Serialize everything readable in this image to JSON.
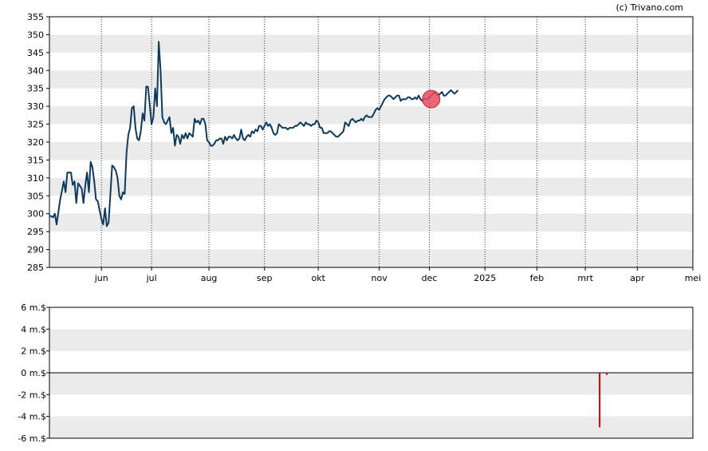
{
  "credit": "(c) Trivano.com",
  "colors": {
    "band": "#ebebeb",
    "price_line": "#0e3a5c",
    "marker": "#e84a5f",
    "volume_bar": "#cc0000"
  },
  "chart_data": [
    {
      "type": "line",
      "title": "",
      "xlabel": "",
      "ylabel": "",
      "ylim": [
        285,
        355
      ],
      "yticks": [
        285,
        290,
        295,
        300,
        305,
        310,
        315,
        320,
        325,
        330,
        335,
        340,
        345,
        350,
        355
      ],
      "grid": "alternating horizontal bands, dotted vertical lines at month ticks",
      "x_domain": [
        0,
        359
      ],
      "xticks": [
        {
          "label": "jun",
          "x": 29
        },
        {
          "label": "jul",
          "x": 57
        },
        {
          "label": "aug",
          "x": 89
        },
        {
          "label": "sep",
          "x": 120
        },
        {
          "label": "okt",
          "x": 150
        },
        {
          "label": "nov",
          "x": 184
        },
        {
          "label": "dec",
          "x": 212
        },
        {
          "label": "2025",
          "x": 243
        },
        {
          "label": "feb",
          "x": 272
        },
        {
          "label": "mrt",
          "x": 299
        },
        {
          "label": "apr",
          "x": 328
        },
        {
          "label": "mei",
          "x": 359
        }
      ],
      "series": [
        {
          "points": [
            [
              0,
              299.5
            ],
            [
              2,
              299
            ],
            [
              3,
              300
            ],
            [
              4,
              297
            ],
            [
              6,
              304
            ],
            [
              8,
              309
            ],
            [
              9,
              306
            ],
            [
              10,
              311.5
            ],
            [
              12,
              311.5
            ],
            [
              13,
              308
            ],
            [
              14,
              309
            ],
            [
              15,
              303
            ],
            [
              16,
              308.5
            ],
            [
              18,
              307
            ],
            [
              19,
              303
            ],
            [
              20,
              308
            ],
            [
              21,
              311.5
            ],
            [
              22,
              306
            ],
            [
              23,
              314.5
            ],
            [
              24,
              313
            ],
            [
              25,
              309
            ],
            [
              26,
              304
            ],
            [
              27,
              303.5
            ],
            [
              28,
              301
            ],
            [
              29,
              298.5
            ],
            [
              30,
              297
            ],
            [
              31,
              301.5
            ],
            [
              32,
              296.5
            ],
            [
              33,
              297.5
            ],
            [
              35,
              313.5
            ],
            [
              36,
              313
            ],
            [
              37,
              312
            ],
            [
              38,
              310
            ],
            [
              39,
              305
            ],
            [
              40,
              304
            ],
            [
              41,
              306
            ],
            [
              42,
              305.5
            ],
            [
              43,
              317
            ],
            [
              44,
              322
            ],
            [
              45,
              324
            ],
            [
              46,
              329.5
            ],
            [
              47,
              330
            ],
            [
              48,
              324
            ],
            [
              49,
              321
            ],
            [
              50,
              320.5
            ],
            [
              51,
              323
            ],
            [
              52,
              328
            ],
            [
              53,
              326
            ],
            [
              54,
              335.5
            ],
            [
              55,
              335.5
            ],
            [
              57,
              325
            ],
            [
              58,
              327
            ],
            [
              59,
              335
            ],
            [
              60,
              330
            ],
            [
              61,
              348
            ],
            [
              62,
              340
            ],
            [
              63,
              327
            ],
            [
              64,
              325.5
            ],
            [
              65,
              325
            ],
            [
              66,
              326
            ],
            [
              67,
              327
            ],
            [
              68,
              322.5
            ],
            [
              69,
              324
            ],
            [
              70,
              319
            ],
            [
              71,
              322
            ],
            [
              72,
              321.5
            ],
            [
              73,
              319.5
            ],
            [
              74,
              322
            ],
            [
              75,
              321
            ],
            [
              76,
              322.5
            ],
            [
              77,
              321
            ],
            [
              78,
              322.5
            ],
            [
              79,
              322
            ],
            [
              80,
              321.5
            ],
            [
              81,
              326.5
            ],
            [
              82,
              325.5
            ],
            [
              83,
              326
            ],
            [
              84,
              325
            ],
            [
              85,
              326.5
            ],
            [
              86,
              326.5
            ],
            [
              87,
              325
            ],
            [
              88,
              320.5
            ],
            [
              89,
              320
            ],
            [
              90,
              319
            ],
            [
              91,
              319
            ],
            [
              92,
              319.5
            ],
            [
              93,
              320.5
            ],
            [
              94,
              320.5
            ],
            [
              95,
              321
            ],
            [
              96,
              321
            ],
            [
              97,
              319.5
            ],
            [
              98,
              321.5
            ],
            [
              99,
              320.5
            ],
            [
              100,
              321.5
            ],
            [
              101,
              321.5
            ],
            [
              102,
              321
            ],
            [
              103,
              322
            ],
            [
              104,
              321
            ],
            [
              105,
              320.5
            ],
            [
              106,
              321
            ],
            [
              107,
              323.5
            ],
            [
              108,
              321
            ],
            [
              109,
              320.5
            ],
            [
              110,
              321.5
            ],
            [
              111,
              322
            ],
            [
              112,
              321.5
            ],
            [
              113,
              323
            ],
            [
              114,
              322.5
            ],
            [
              115,
              323.5
            ],
            [
              116,
              323
            ],
            [
              117,
              324.5
            ],
            [
              118,
              324.5
            ],
            [
              119,
              323.5
            ],
            [
              120,
              324.5
            ],
            [
              121,
              325.5
            ],
            [
              122,
              324.5
            ],
            [
              123,
              325
            ],
            [
              124,
              324
            ],
            [
              125,
              322.5
            ],
            [
              126,
              322
            ],
            [
              127,
              322.5
            ],
            [
              128,
              325
            ],
            [
              129,
              324.5
            ],
            [
              130,
              324
            ],
            [
              131,
              324
            ],
            [
              132,
              324
            ],
            [
              133,
              323.5
            ],
            [
              134,
              324
            ],
            [
              135,
              324
            ],
            [
              136,
              324
            ],
            [
              137,
              324.5
            ],
            [
              138,
              324.5
            ],
            [
              139,
              325
            ],
            [
              140,
              325.5
            ],
            [
              141,
              325
            ],
            [
              142,
              324.5
            ],
            [
              143,
              325.5
            ],
            [
              144,
              325
            ],
            [
              145,
              325
            ],
            [
              146,
              324.5
            ],
            [
              147,
              325
            ],
            [
              148,
              325
            ],
            [
              149,
              326
            ],
            [
              150,
              325.5
            ],
            [
              151,
              324
            ],
            [
              152,
              324
            ],
            [
              153,
              322.5
            ],
            [
              154,
              322.5
            ],
            [
              155,
              322.5
            ],
            [
              156,
              323
            ],
            [
              157,
              323
            ],
            [
              158,
              322.5
            ],
            [
              159,
              322
            ],
            [
              160,
              321.5
            ],
            [
              161,
              321.5
            ],
            [
              162,
              322
            ],
            [
              163,
              322.5
            ],
            [
              164,
              323
            ],
            [
              165,
              325.5
            ],
            [
              166,
              325
            ],
            [
              167,
              324.5
            ],
            [
              168,
              326
            ],
            [
              169,
              326.5
            ],
            [
              170,
              326
            ],
            [
              171,
              325.5
            ],
            [
              172,
              326
            ],
            [
              173,
              326
            ],
            [
              174,
              326.5
            ],
            [
              175,
              326
            ],
            [
              176,
              327
            ],
            [
              177,
              327.5
            ],
            [
              178,
              327
            ],
            [
              179,
              327
            ],
            [
              180,
              327
            ],
            [
              181,
              328
            ],
            [
              182,
              329
            ],
            [
              183,
              329.5
            ],
            [
              184,
              329
            ],
            [
              185,
              330
            ],
            [
              186,
              331
            ],
            [
              187,
              332
            ],
            [
              188,
              332.5
            ],
            [
              189,
              333
            ],
            [
              190,
              333
            ],
            [
              191,
              332.5
            ],
            [
              192,
              332
            ],
            [
              193,
              332.5
            ],
            [
              194,
              333
            ],
            [
              195,
              333
            ],
            [
              196,
              331.5
            ],
            [
              197,
              332
            ],
            [
              198,
              332
            ],
            [
              199,
              332
            ],
            [
              200,
              332.5
            ],
            [
              201,
              332.5
            ],
            [
              202,
              332
            ],
            [
              203,
              332
            ],
            [
              204,
              332.5
            ],
            [
              205,
              332
            ],
            [
              206,
              333
            ],
            [
              207,
              332
            ],
            [
              208,
              331.5
            ],
            [
              209,
              332
            ],
            [
              210,
              332
            ],
            [
              211,
              332
            ],
            [
              212,
              332.5
            ],
            [
              213,
              333
            ],
            [
              214,
              333.5
            ],
            [
              215,
              334
            ],
            [
              216,
              333.5
            ],
            [
              217,
              333
            ],
            [
              218,
              333.5
            ],
            [
              219,
              334
            ],
            [
              220,
              333
            ],
            [
              221,
              333
            ],
            [
              222,
              333.5
            ],
            [
              223,
              334
            ],
            [
              224,
              334.5
            ],
            [
              225,
              334
            ],
            [
              226,
              333.5
            ],
            [
              227,
              334
            ],
            [
              228,
              334.5
            ]
          ]
        }
      ],
      "marker": {
        "x": 213,
        "y": 332
      }
    },
    {
      "type": "bar",
      "title": "",
      "xlabel": "",
      "ylabel": "",
      "ylim": [
        -6,
        6
      ],
      "yticks": [
        -6,
        -4,
        -2,
        0,
        2,
        4,
        6
      ],
      "ytick_labels": [
        "-6 m.$",
        "-4 m.$",
        "-2 m.$",
        "0 m.$",
        "2 m.$",
        "4 m.$",
        "6 m.$"
      ],
      "bars": [
        {
          "x": 307,
          "value": -5.0
        },
        {
          "x": 311,
          "value": -0.2
        }
      ]
    }
  ]
}
